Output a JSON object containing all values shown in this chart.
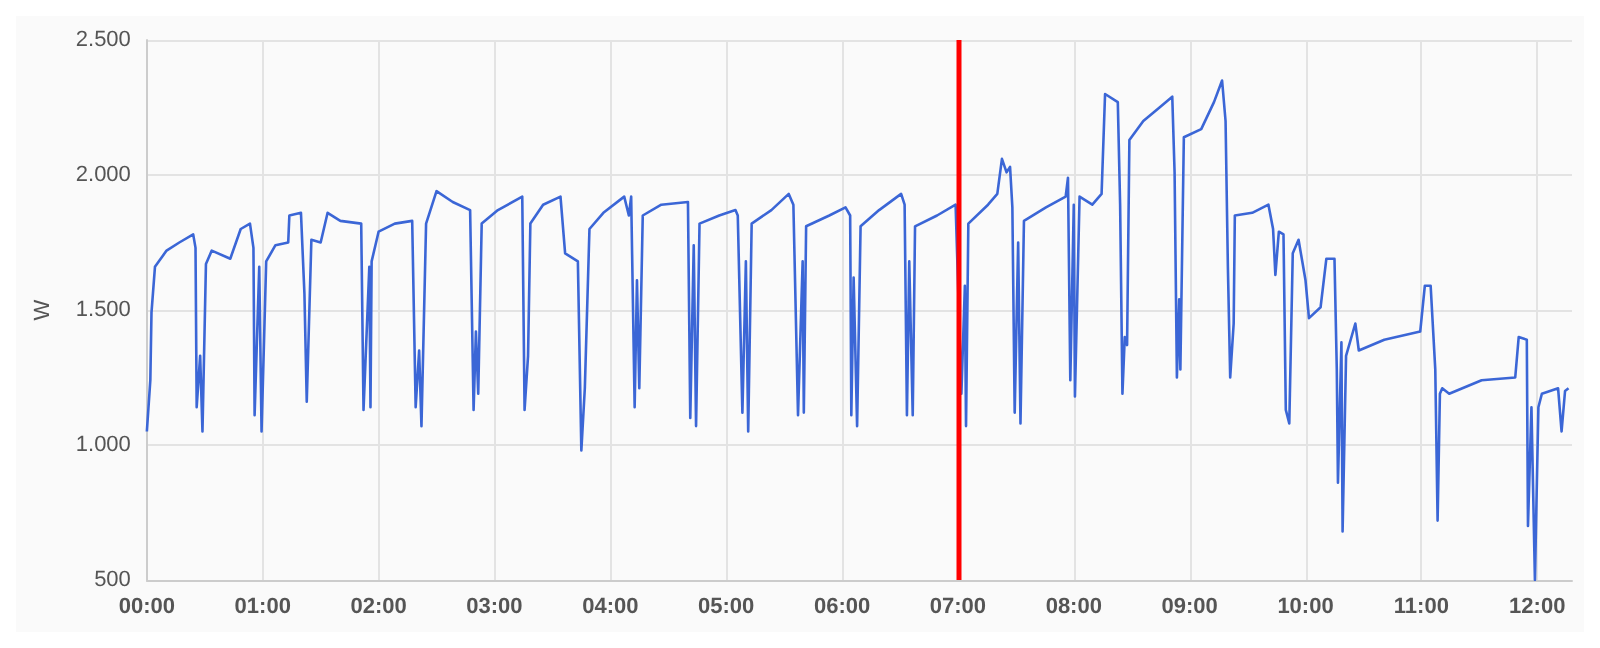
{
  "chart_data": {
    "type": "line",
    "ylabel": "W",
    "grid": true,
    "marker": "none",
    "line_style": "solid",
    "xlim": [
      0,
      12.3
    ],
    "xticks": [
      {
        "value": 0,
        "label": "00:00"
      },
      {
        "value": 1,
        "label": "01:00"
      },
      {
        "value": 2,
        "label": "02:00"
      },
      {
        "value": 3,
        "label": "03:00"
      },
      {
        "value": 4,
        "label": "04:00"
      },
      {
        "value": 5,
        "label": "05:00"
      },
      {
        "value": 6,
        "label": "06:00"
      },
      {
        "value": 7,
        "label": "07:00"
      },
      {
        "value": 8,
        "label": "08:00"
      },
      {
        "value": 9,
        "label": "09:00"
      },
      {
        "value": 10,
        "label": "10:00"
      },
      {
        "value": 11,
        "label": "11:00"
      },
      {
        "value": 12,
        "label": "12:00"
      }
    ],
    "ylim": [
      500,
      2500
    ],
    "yticks": [
      500,
      {
        "value": 1000,
        "label": "1.000"
      },
      {
        "value": 1500,
        "label": "1.500"
      },
      {
        "value": 2000,
        "label": "2.000"
      },
      {
        "value": 2500,
        "label": "2.500"
      }
    ],
    "ref_lines": [
      {
        "axis": "x",
        "value": 7,
        "color": "#ff0000"
      }
    ],
    "series": [
      {
        "color": "#3b66d6",
        "x": [
          0,
          0.03,
          0.04,
          0.07,
          0.17,
          0.28,
          0.4,
          0.42,
          0.43,
          0.46,
          0.48,
          0.51,
          0.56,
          0.72,
          0.81,
          0.89,
          0.92,
          0.93,
          0.97,
          0.99,
          1.03,
          1.11,
          1.22,
          1.23,
          1.33,
          1.36,
          1.38,
          1.42,
          1.5,
          1.56,
          1.67,
          1.85,
          1.87,
          1.92,
          1.93,
          1.94,
          2.0,
          2.14,
          2.29,
          2.32,
          2.35,
          2.37,
          2.41,
          2.5,
          2.64,
          2.79,
          2.82,
          2.84,
          2.86,
          2.89,
          3.03,
          3.24,
          3.26,
          3.29,
          3.31,
          3.42,
          3.57,
          3.61,
          3.72,
          3.75,
          3.78,
          3.82,
          3.94,
          4.12,
          4.16,
          4.18,
          4.21,
          4.23,
          4.25,
          4.28,
          4.44,
          4.67,
          4.69,
          4.72,
          4.74,
          4.77,
          4.94,
          5.08,
          5.1,
          5.14,
          5.17,
          5.19,
          5.22,
          5.39,
          5.54,
          5.58,
          5.62,
          5.66,
          5.67,
          5.69,
          5.89,
          6.03,
          6.07,
          6.08,
          6.1,
          6.13,
          6.16,
          6.32,
          6.51,
          6.54,
          6.56,
          6.58,
          6.61,
          6.63,
          6.82,
          6.98,
          7.03,
          7.06,
          7.07,
          7.09,
          7.26,
          7.34,
          7.38,
          7.42,
          7.45,
          7.47,
          7.49,
          7.52,
          7.54,
          7.57,
          7.76,
          7.93,
          7.95,
          7.97,
          8.0,
          8.01,
          8.05,
          8.16,
          8.24,
          8.27,
          8.38,
          8.4,
          8.42,
          8.44,
          8.46,
          8.48,
          8.6,
          8.74,
          8.85,
          8.87,
          8.89,
          8.91,
          8.92,
          8.95,
          9.1,
          9.21,
          9.28,
          9.31,
          9.33,
          9.35,
          9.38,
          9.39,
          9.54,
          9.68,
          9.72,
          9.74,
          9.77,
          9.81,
          9.83,
          9.86,
          9.89,
          9.94,
          10.0,
          10.03,
          10.13,
          10.18,
          10.25,
          10.27,
          10.28,
          10.31,
          10.32,
          10.35,
          10.43,
          10.46,
          10.68,
          10.99,
          11.03,
          11.08,
          11.12,
          11.14,
          11.16,
          11.18,
          11.24,
          11.52,
          11.81,
          11.84,
          11.91,
          11.92,
          11.95,
          11.98,
          12.01,
          12.04,
          12.18,
          12.21,
          12.24,
          12.27
        ],
        "values": [
          1050,
          1240,
          1490,
          1660,
          1720,
          1750,
          1780,
          1730,
          1140,
          1330,
          1050,
          1670,
          1720,
          1690,
          1800,
          1820,
          1730,
          1110,
          1660,
          1050,
          1680,
          1740,
          1750,
          1850,
          1860,
          1560,
          1160,
          1760,
          1750,
          1860,
          1830,
          1820,
          1130,
          1660,
          1140,
          1680,
          1790,
          1820,
          1830,
          1140,
          1350,
          1070,
          1820,
          1940,
          1900,
          1870,
          1130,
          1420,
          1190,
          1820,
          1870,
          1920,
          1130,
          1330,
          1820,
          1890,
          1920,
          1710,
          1680,
          980,
          1210,
          1800,
          1860,
          1920,
          1850,
          1920,
          1140,
          1610,
          1210,
          1850,
          1890,
          1900,
          1100,
          1740,
          1070,
          1820,
          1850,
          1870,
          1850,
          1120,
          1680,
          1050,
          1820,
          1870,
          1930,
          1890,
          1110,
          1680,
          1120,
          1810,
          1850,
          1880,
          1850,
          1110,
          1620,
          1070,
          1810,
          1870,
          1930,
          1890,
          1110,
          1680,
          1110,
          1810,
          1850,
          1890,
          1190,
          1590,
          1070,
          1820,
          1890,
          1930,
          2060,
          2010,
          2030,
          1880,
          1120,
          1750,
          1080,
          1830,
          1880,
          1920,
          1990,
          1240,
          1890,
          1180,
          1920,
          1890,
          1930,
          2300,
          2270,
          1890,
          1190,
          1400,
          1370,
          2130,
          2200,
          2250,
          2290,
          2010,
          1250,
          1540,
          1280,
          2140,
          2170,
          2270,
          2350,
          2200,
          1660,
          1250,
          1450,
          1850,
          1860,
          1890,
          1800,
          1630,
          1790,
          1780,
          1130,
          1080,
          1710,
          1760,
          1610,
          1470,
          1510,
          1690,
          1690,
          1280,
          860,
          1380,
          680,
          1330,
          1450,
          1350,
          1390,
          1420,
          1590,
          1590,
          1280,
          720,
          1190,
          1210,
          1190,
          1240,
          1250,
          1400,
          1390,
          700,
          1140,
          500,
          1140,
          1190,
          1210,
          1050,
          1200,
          1210
        ]
      }
    ]
  }
}
